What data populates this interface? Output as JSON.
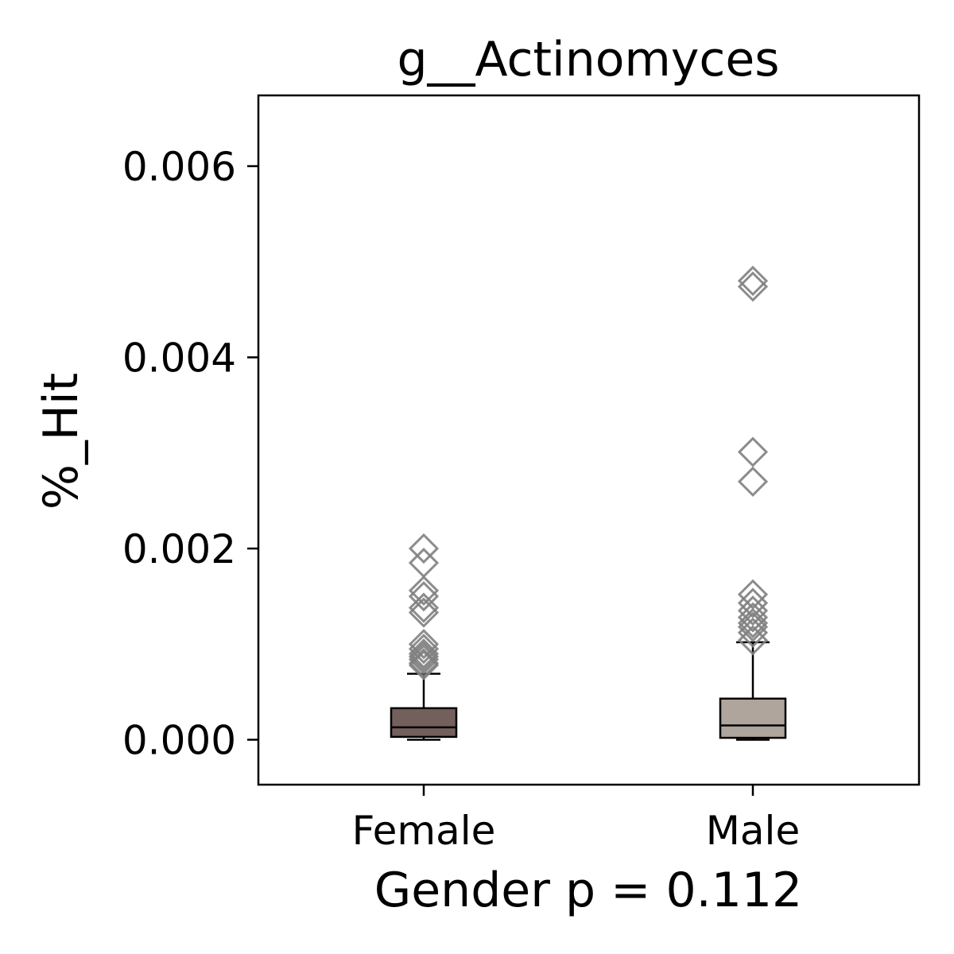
{
  "chart_data": {
    "type": "box",
    "title": "g__Actinomyces",
    "xlabel": "Gender p = 0.112",
    "ylabel": "%_Hit",
    "ylim": [
      -0.00047,
      0.00674
    ],
    "yticks": [
      0.0,
      0.002,
      0.004,
      0.006
    ],
    "ytick_labels": [
      "0.000",
      "0.002",
      "0.004",
      "0.006"
    ],
    "categories": [
      "Female",
      "Male"
    ],
    "grid": false,
    "boxes": [
      {
        "category": "Female",
        "color": "#735f5c",
        "whisker_low": 0.0,
        "q1": 3e-05,
        "median": 0.00013,
        "q3": 0.00033,
        "whisker_high": 0.00069,
        "outliers": [
          0.002,
          0.00185,
          0.00156,
          0.0015,
          0.00138,
          0.00133,
          0.001,
          0.00095,
          0.0009,
          0.00087,
          0.00084,
          0.0008,
          0.00078
        ]
      },
      {
        "category": "Male",
        "color": "#b0a59d",
        "whisker_low": 0.0,
        "q1": 2e-05,
        "median": 0.00015,
        "q3": 0.00043,
        "whisker_high": 0.00102,
        "outliers": [
          0.0048,
          0.00474,
          0.00301,
          0.0027,
          0.00152,
          0.00143,
          0.00135,
          0.00128,
          0.00122,
          0.00118,
          0.00112,
          0.00104
        ]
      }
    ],
    "outlier_color": "#808080"
  }
}
